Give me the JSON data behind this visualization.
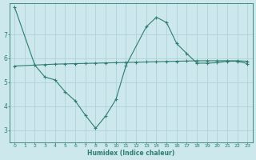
{
  "xlabel": "Humidex (Indice chaleur)",
  "bg_color": "#cce8ed",
  "line_color": "#2e7d6e",
  "grid_color": "#aacdd4",
  "xlim": [
    -0.5,
    23.5
  ],
  "ylim": [
    2.5,
    8.3
  ],
  "yticks": [
    3,
    4,
    5,
    6,
    7
  ],
  "xticks": [
    0,
    1,
    2,
    3,
    4,
    5,
    6,
    7,
    8,
    9,
    10,
    11,
    12,
    13,
    14,
    15,
    16,
    17,
    18,
    19,
    20,
    21,
    22,
    23
  ],
  "line1_x": [
    0,
    2,
    3,
    4,
    5,
    6,
    7,
    8,
    9,
    10,
    11,
    13,
    14,
    15,
    16,
    17,
    18,
    19,
    20,
    21,
    22,
    23
  ],
  "line1_y": [
    8.15,
    5.72,
    5.22,
    5.1,
    4.6,
    4.22,
    3.62,
    3.08,
    3.6,
    4.28,
    5.7,
    7.32,
    7.72,
    7.5,
    6.62,
    6.2,
    5.8,
    5.8,
    5.82,
    5.88,
    5.88,
    5.78
  ],
  "line2_x": [
    0,
    2,
    3,
    4,
    5,
    6,
    7,
    8,
    9,
    10,
    11,
    12,
    13,
    14,
    15,
    16,
    17,
    18,
    19,
    20,
    21,
    22,
    23
  ],
  "line2_y": [
    5.68,
    5.72,
    5.74,
    5.76,
    5.77,
    5.78,
    5.79,
    5.8,
    5.81,
    5.82,
    5.83,
    5.84,
    5.85,
    5.86,
    5.87,
    5.88,
    5.89,
    5.9,
    5.9,
    5.9,
    5.9,
    5.9,
    5.88
  ]
}
